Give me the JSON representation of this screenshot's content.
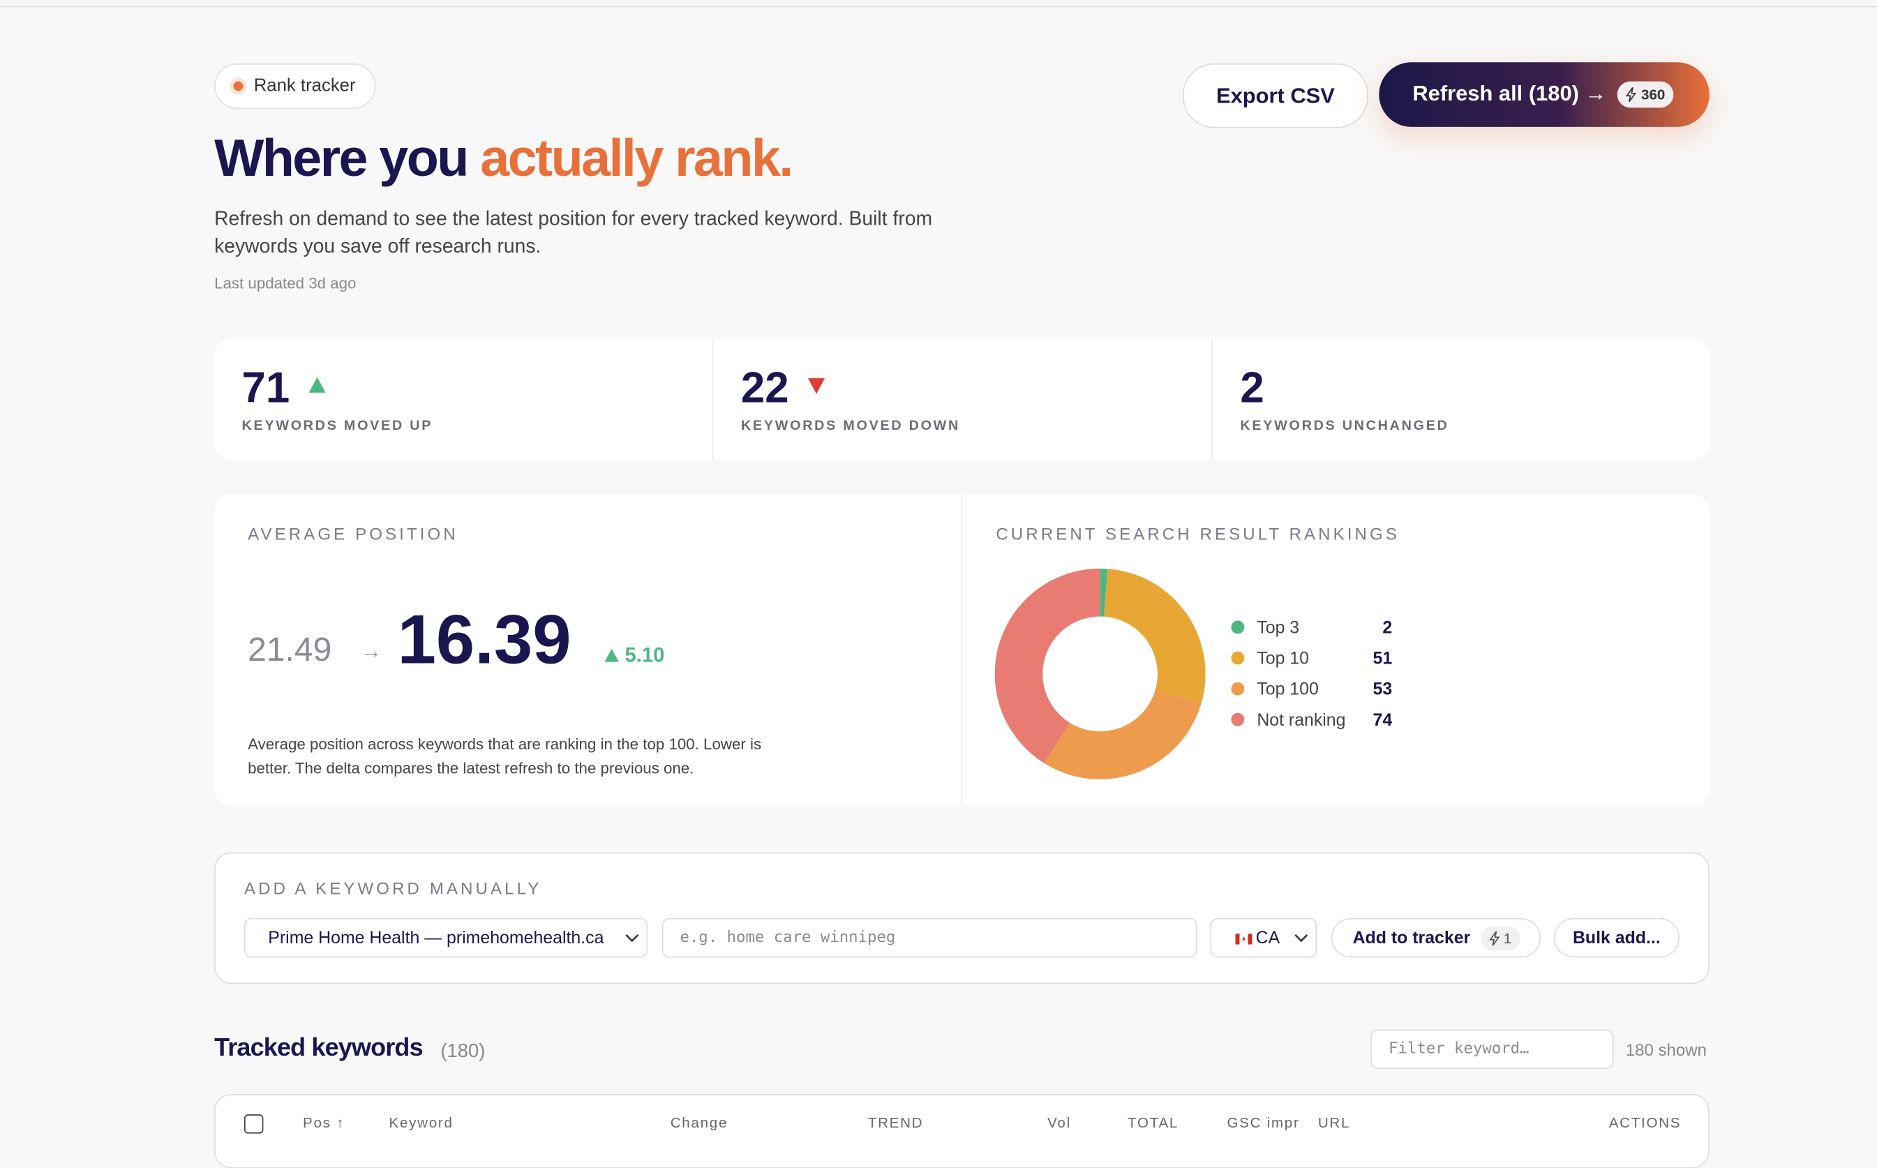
{
  "header": {
    "badge": "Rank tracker",
    "title": "Where you ",
    "title_accent": "actually rank.",
    "description": "Refresh on demand to see the latest position for every tracked keyword. Built from keywords you save off research runs.",
    "updated": "Last updated 3d ago"
  },
  "actions": {
    "export": "Export CSV",
    "refresh": "Refresh all (180) →",
    "credits": 360
  },
  "stats": [
    {
      "value": 71,
      "label": "KEYWORDS MOVED UP"
    },
    {
      "value": 22,
      "label": "KEYWORDS MOVED DOWN"
    },
    {
      "value": 2,
      "label": "KEYWORDS UNCHANGED"
    }
  ],
  "average": {
    "title": "AVERAGE POSITION",
    "previous": 21.49,
    "current": 16.39,
    "delta": "5.10",
    "note": "Average position across keywords that are ranking in the top 100. Lower is better. The delta compares the latest refresh to the previous one."
  },
  "chart_data": {
    "type": "donut",
    "title": "CURRENT SEARCH RESULT RANKINGS",
    "categories": [
      "Top 3",
      "Top 10",
      "Top 100",
      "Not ranking"
    ],
    "values": [
      2,
      51,
      53,
      74
    ],
    "colors": [
      "#4cb782",
      "#e8a634",
      "#ef9b4e",
      "#e87b72"
    ]
  },
  "add_keyword": {
    "title": "ADD A KEYWORD MANUALLY",
    "project": "Prime Home Health — primehomehealth.ca",
    "placeholder": "e.g. home care winnipeg",
    "country": "CA",
    "add": "Add to tracker",
    "cost": 1,
    "bulk": "Bulk add..."
  },
  "tracked": {
    "title": "Tracked keywords",
    "count": "(180)",
    "filter_placeholder": "Filter keyword…",
    "shown": "180 shown",
    "columns": [
      "Pos ↑",
      "Keyword",
      "Change",
      "TREND",
      "Vol",
      "TOTAL",
      "GSC impr",
      "URL",
      "ACTIONS"
    ]
  }
}
